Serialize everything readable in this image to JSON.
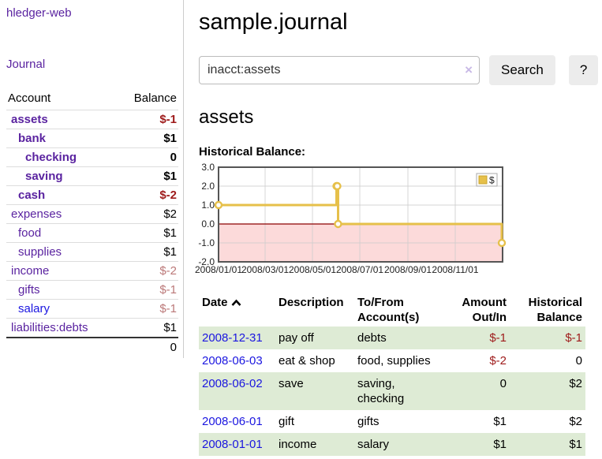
{
  "palette": {
    "purple": "#5a23a0",
    "blue": "#1b16e0",
    "dark_red": "#9e1a1a",
    "rose": "#bb7878",
    "stripe_green": "#deebd5",
    "gold": "#e6c04a",
    "gold_dark": "#c9a52f",
    "pink": "#fcdada",
    "zero_line": "#8b0000",
    "chart_border": "#555555",
    "gridline": "#cccccc",
    "button_bg": "#ececec",
    "input_border": "#bbbbbb",
    "divider": "#cccccc",
    "row_divider": "#dddddd",
    "clear_icon": "#c8b9e6",
    "axis_text": "#222222"
  },
  "sidebar": {
    "app_title": "hledger-web",
    "nav": {
      "journal_label": "Journal"
    },
    "accounts_table": {
      "headers": {
        "account": "Account",
        "balance": "Balance"
      },
      "rows": [
        {
          "name": "assets",
          "indent": 0,
          "bold": true,
          "balance": "$-1",
          "balance_style": "negative-strong"
        },
        {
          "name": "bank",
          "indent": 1,
          "bold": true,
          "balance": "$1",
          "balance_style": "normal"
        },
        {
          "name": "checking",
          "indent": 2,
          "bold": true,
          "balance": "0",
          "balance_style": "normal"
        },
        {
          "name": "saving",
          "indent": 2,
          "bold": true,
          "balance": "$1",
          "balance_style": "normal"
        },
        {
          "name": "cash",
          "indent": 1,
          "bold": true,
          "balance": "$-2",
          "balance_style": "negative-strong"
        },
        {
          "name": "expenses",
          "indent": 0,
          "bold": false,
          "balance": "$2",
          "balance_style": "normal"
        },
        {
          "name": "food",
          "indent": 1,
          "bold": false,
          "balance": "$1",
          "balance_style": "normal"
        },
        {
          "name": "supplies",
          "indent": 1,
          "bold": false,
          "balance": "$1",
          "balance_style": "normal"
        },
        {
          "name": "income",
          "indent": 0,
          "bold": false,
          "balance": "$-2",
          "balance_style": "negative-muted"
        },
        {
          "name": "gifts",
          "indent": 1,
          "bold": false,
          "balance": "$-1",
          "balance_style": "negative-muted"
        },
        {
          "name": "salary",
          "indent": 1,
          "bold": false,
          "balance": "$-1",
          "balance_style": "negative-muted",
          "name_style": "blue"
        },
        {
          "name": "liabilities:debts",
          "indent": 0,
          "bold": false,
          "balance": "$1",
          "balance_style": "normal"
        }
      ],
      "total": "0"
    }
  },
  "main": {
    "title": "sample.journal",
    "search": {
      "value": "inacct:assets",
      "clear_icon": "×",
      "button_label": "Search",
      "help_label": "?"
    },
    "section_heading": "assets",
    "chart_label": "Historical Balance:"
  },
  "chart_data": {
    "type": "line",
    "step": "after",
    "title": "Historical Balance",
    "series": [
      {
        "name": "$",
        "points": [
          [
            "2008-01-01",
            1
          ],
          [
            "2008-06-01",
            2
          ],
          [
            "2008-06-02",
            2
          ],
          [
            "2008-06-03",
            0
          ],
          [
            "2008-12-31",
            -1
          ]
        ]
      }
    ],
    "x_domain": [
      "2008-01-01",
      "2009-01-01"
    ],
    "y_domain": [
      -2,
      3
    ],
    "x_ticks": [
      "2008/01/01",
      "2008/03/01",
      "2008/05/01",
      "2008/07/01",
      "2008/09/01",
      "2008/11/01"
    ],
    "y_ticks": [
      3.0,
      2.0,
      1.0,
      0.0,
      -1.0,
      -2.0
    ],
    "legend": {
      "label": "$",
      "position": "top-right"
    },
    "grid": true,
    "negative_region_fill": true
  },
  "register_table": {
    "headers": {
      "date": "Date",
      "description": "Description",
      "tofrom": "To/From Account(s)",
      "amount": "Amount Out/In",
      "balance": "Historical Balance"
    },
    "sort": {
      "column": "date",
      "direction": "ascending"
    },
    "rows": [
      {
        "date": "2008-12-31",
        "description": "pay off",
        "tofrom": "debts",
        "amount": "$-1",
        "amount_neg": true,
        "balance": "$-1",
        "balance_neg": true
      },
      {
        "date": "2008-06-03",
        "description": "eat & shop",
        "tofrom": "food, supplies",
        "amount": "$-2",
        "amount_neg": true,
        "balance": "0",
        "balance_neg": false
      },
      {
        "date": "2008-06-02",
        "description": "save",
        "tofrom": "saving, checking",
        "amount": "0",
        "amount_neg": false,
        "balance": "$2",
        "balance_neg": false
      },
      {
        "date": "2008-06-01",
        "description": "gift",
        "tofrom": "gifts",
        "amount": "$1",
        "amount_neg": false,
        "balance": "$2",
        "balance_neg": false
      },
      {
        "date": "2008-01-01",
        "description": "income",
        "tofrom": "salary",
        "amount": "$1",
        "amount_neg": false,
        "balance": "$1",
        "balance_neg": false
      }
    ]
  }
}
